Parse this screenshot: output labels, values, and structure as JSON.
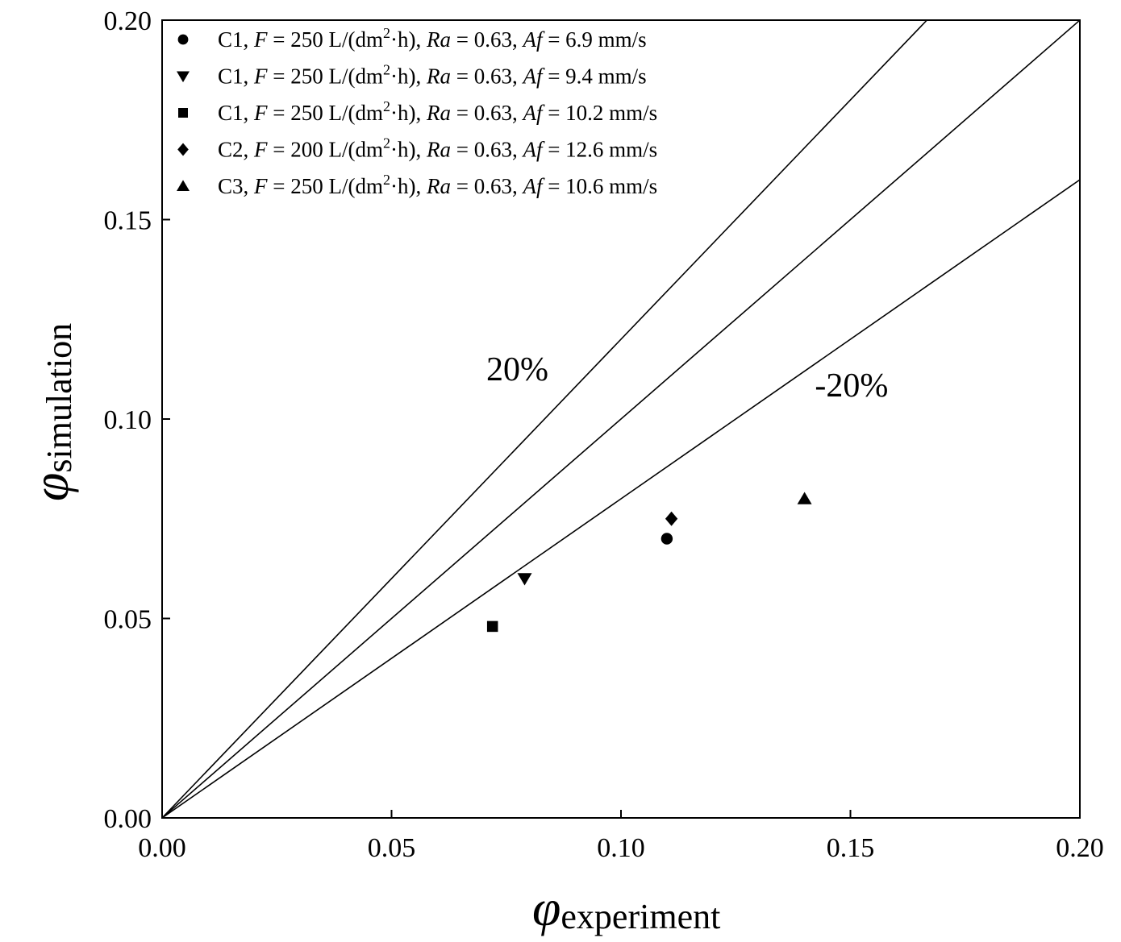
{
  "chart_data": {
    "type": "scatter",
    "xlabel": {
      "symbol": "φ",
      "subscript": "experiment"
    },
    "ylabel": {
      "symbol": "φ",
      "subscript": "simulation"
    },
    "xlim": [
      0.0,
      0.2
    ],
    "ylim": [
      0.0,
      0.2
    ],
    "xticks": [
      "0.00",
      "0.05",
      "0.10",
      "0.15",
      "0.20"
    ],
    "yticks": [
      "0.00",
      "0.05",
      "0.10",
      "0.15",
      "0.20"
    ],
    "grid": false,
    "legend_position": "top-left",
    "series": [
      {
        "marker": "circle",
        "legend": {
          "condition": "C1",
          "F": "250 L/(dm",
          "F_sup": "2",
          "F_end": "·h)",
          "Ra": "0.63",
          "Af": "6.9 mm/s"
        },
        "points": [
          {
            "x": 0.11,
            "y": 0.07
          }
        ]
      },
      {
        "marker": "triangle-down",
        "legend": {
          "condition": "C1",
          "F": "250 L/(dm",
          "F_sup": "2",
          "F_end": "·h)",
          "Ra": "0.63",
          "Af": "9.4 mm/s"
        },
        "points": [
          {
            "x": 0.079,
            "y": 0.06
          }
        ]
      },
      {
        "marker": "square",
        "legend": {
          "condition": "C1",
          "F": "250 L/(dm",
          "F_sup": "2",
          "F_end": "·h)",
          "Ra": "0.63",
          "Af": "10.2 mm/s"
        },
        "points": [
          {
            "x": 0.072,
            "y": 0.048
          }
        ]
      },
      {
        "marker": "diamond",
        "legend": {
          "condition": "C2",
          "F": "200 L/(dm",
          "F_sup": "2",
          "F_end": "·h)",
          "Ra": "0.63",
          "Af": "12.6 mm/s"
        },
        "points": [
          {
            "x": 0.111,
            "y": 0.075
          }
        ]
      },
      {
        "marker": "triangle-up",
        "legend": {
          "condition": "C3",
          "F": "250 L/(dm",
          "F_sup": "2",
          "F_end": "·h)",
          "Ra": "0.63",
          "Af": "10.6 mm/s"
        },
        "points": [
          {
            "x": 0.14,
            "y": 0.08
          }
        ]
      }
    ],
    "reference_lines": [
      {
        "slope": 1.2,
        "label": "20%"
      },
      {
        "slope": 1.0,
        "label": ""
      },
      {
        "slope": 0.8,
        "label": "-20%"
      }
    ],
    "legend_symbols": {
      "F": "F",
      "Ra": "Ra",
      "Af": "Af",
      "equals": "="
    }
  }
}
